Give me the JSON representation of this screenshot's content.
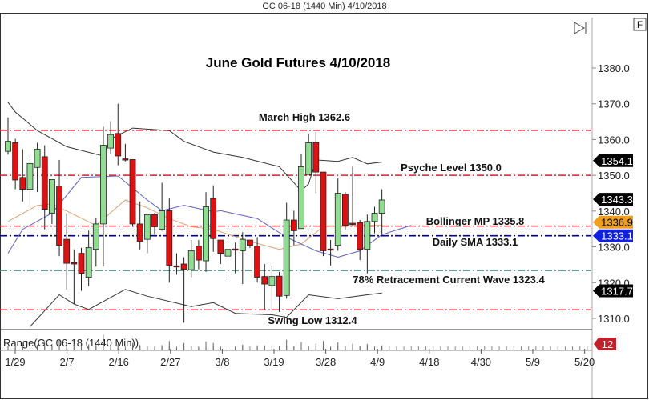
{
  "window_title": "GC 06-18 (1440 Min)  4/10/2018",
  "buttons": {
    "scroll_end_icon": "play-end-icon",
    "f_label": "F"
  },
  "chart_data": {
    "type": "candlestick",
    "title": "June Gold Futures 4/10/2018",
    "ylim": [
      1305,
      1385
    ],
    "y_ticks": [
      "1380.0",
      "1370.0",
      "1360.0",
      "1350.0",
      "1340.0",
      "1330.0",
      "1320.0",
      "1310.0"
    ],
    "x_ticks": [
      "1/29",
      "2/7",
      "2/16",
      "2/27",
      "3/8",
      "3/19",
      "3/28",
      "4/9",
      "4/18",
      "4/30",
      "5/9",
      "5/20"
    ],
    "grid": false,
    "colors": {
      "up": "#90dc90",
      "down": "#dd1111",
      "level": "#d42030",
      "sma": "#000080",
      "retracement": "#4f8f7a"
    },
    "ohlc": [
      [
        1356.7,
        1366.2,
        1355.8,
        1359.5
      ],
      [
        1359.1,
        1360.2,
        1346.1,
        1348.7
      ],
      [
        1349.4,
        1357.3,
        1342.7,
        1346.1
      ],
      [
        1346.1,
        1355.8,
        1340.9,
        1353.3
      ],
      [
        1352.2,
        1359.1,
        1345.3,
        1357.3
      ],
      [
        1355.2,
        1358.4,
        1334.9,
        1340.5
      ],
      [
        1339.4,
        1348.8,
        1336.4,
        1348.8
      ],
      [
        1347.0,
        1354.3,
        1327.4,
        1330.4
      ],
      [
        1332.1,
        1339.4,
        1318.1,
        1325.4
      ],
      [
        1325.6,
        1329.3,
        1314.0,
        1325.2
      ],
      [
        1328.2,
        1329.7,
        1317.7,
        1322.6
      ],
      [
        1321.5,
        1334.5,
        1319.0,
        1329.8
      ],
      [
        1329.3,
        1338.2,
        1324.5,
        1336.4
      ],
      [
        1336.4,
        1363.6,
        1324.5,
        1358.4
      ],
      [
        1357.6,
        1365.1,
        1356.1,
        1361.4
      ],
      [
        1361.7,
        1370.0,
        1352.8,
        1355.4
      ],
      [
        1354.6,
        1358.8,
        1353.9,
        1354.5
      ],
      [
        1354.4,
        1354.4,
        1335.6,
        1336.4
      ],
      [
        1336.4,
        1342.7,
        1329.3,
        1331.5
      ],
      [
        1332.1,
        1339.0,
        1328.2,
        1339.0
      ],
      [
        1339.0,
        1339.5,
        1333.4,
        1335.6
      ],
      [
        1334.9,
        1347.9,
        1334.5,
        1340.1
      ],
      [
        1340.1,
        1343.5,
        1320.0,
        1324.8
      ],
      [
        1324.7,
        1328.2,
        1322.2,
        1324.5
      ],
      [
        1325.2,
        1327.1,
        1308.8,
        1323.7
      ],
      [
        1323.6,
        1331.9,
        1321.5,
        1328.9
      ],
      [
        1330.2,
        1331.9,
        1323.7,
        1326.3
      ],
      [
        1326.1,
        1345.3,
        1323.0,
        1341.2
      ],
      [
        1343.5,
        1347.2,
        1328.6,
        1332.3
      ],
      [
        1331.9,
        1331.9,
        1325.2,
        1328.2
      ],
      [
        1327.4,
        1331.2,
        1320.7,
        1329.3
      ],
      [
        1329.4,
        1331.2,
        1322.6,
        1329.2
      ],
      [
        1328.9,
        1334.1,
        1319.6,
        1332.1
      ],
      [
        1331.9,
        1331.9,
        1329.7,
        1330.4
      ],
      [
        1330.2,
        1332.7,
        1320.0,
        1321.5
      ],
      [
        1321.7,
        1325.2,
        1312.5,
        1319.6
      ],
      [
        1319.2,
        1324.8,
        1312.5,
        1321.7
      ],
      [
        1321.8,
        1323.0,
        1311.8,
        1316.2
      ],
      [
        1316.4,
        1342.3,
        1315.5,
        1337.5
      ],
      [
        1337.5,
        1340.1,
        1330.4,
        1334.5
      ],
      [
        1335.1,
        1356.1,
        1335.1,
        1352.4
      ],
      [
        1350.2,
        1361.7,
        1350.2,
        1359.1
      ],
      [
        1359.1,
        1362.1,
        1345.0,
        1350.9
      ],
      [
        1350.9,
        1350.9,
        1327.4,
        1328.9
      ],
      [
        1329.4,
        1331.9,
        1324.8,
        1329.2
      ],
      [
        1330.4,
        1349.1,
        1328.9,
        1345.0
      ],
      [
        1344.7,
        1345.3,
        1334.9,
        1336.0
      ],
      [
        1336.6,
        1352.4,
        1335.6,
        1336.4
      ],
      [
        1336.8,
        1337.5,
        1326.3,
        1329.3
      ],
      [
        1329.3,
        1339.0,
        1322.6,
        1337.1
      ],
      [
        1337.1,
        1341.2,
        1333.8,
        1339.4
      ],
      [
        1339.4,
        1346.1,
        1333.4,
        1343.1
      ]
    ],
    "indicator_lines": [
      {
        "kind": "bollinger-upper",
        "color": "#333333",
        "points": [
          [
            0,
            1370.4
          ],
          [
            1,
            1367.7
          ],
          [
            4,
            1362.5
          ],
          [
            8,
            1358.0
          ],
          [
            13,
            1355.4
          ],
          [
            14,
            1360.2
          ],
          [
            17,
            1363.2
          ],
          [
            22,
            1362.5
          ],
          [
            24,
            1359.5
          ],
          [
            28,
            1356.5
          ],
          [
            32,
            1355.0
          ],
          [
            37,
            1352.4
          ],
          [
            40,
            1345.7
          ],
          [
            41,
            1347.6
          ],
          [
            42,
            1354.3
          ],
          [
            45,
            1353.9
          ],
          [
            47,
            1355.0
          ],
          [
            49,
            1353.2
          ],
          [
            51,
            1353.7
          ]
        ]
      },
      {
        "kind": "bollinger-lower",
        "color": "#333333",
        "points": [
          [
            3,
            1307.7
          ],
          [
            7,
            1316.6
          ],
          [
            9,
            1314.0
          ],
          [
            11,
            1312.5
          ],
          [
            16,
            1318.1
          ],
          [
            19,
            1316.2
          ],
          [
            25,
            1313.3
          ],
          [
            28,
            1314.4
          ],
          [
            31,
            1311.4
          ],
          [
            36,
            1311.0
          ],
          [
            38,
            1310.3
          ],
          [
            41,
            1316.6
          ],
          [
            45,
            1315.5
          ],
          [
            49,
            1316.6
          ],
          [
            51,
            1317.1
          ]
        ]
      },
      {
        "kind": "bollinger-mid",
        "color": "#e0a070",
        "points": [
          [
            0,
            1337.1
          ],
          [
            4,
            1341.6
          ],
          [
            6,
            1342.0
          ],
          [
            12,
            1336.0
          ],
          [
            16,
            1343.1
          ],
          [
            19,
            1340.9
          ],
          [
            22,
            1337.9
          ],
          [
            25,
            1335.6
          ],
          [
            28,
            1334.9
          ],
          [
            33,
            1331.5
          ],
          [
            37,
            1329.3
          ],
          [
            40,
            1330.8
          ],
          [
            43,
            1335.6
          ],
          [
            47,
            1336.0
          ],
          [
            51,
            1336.0
          ]
        ]
      },
      {
        "kind": "moving-average",
        "color": "#6060c0",
        "points": [
          [
            0,
            1328.2
          ],
          [
            2,
            1334.9
          ],
          [
            6,
            1339.4
          ],
          [
            10,
            1349.4
          ],
          [
            15,
            1349.8
          ],
          [
            19,
            1343.1
          ],
          [
            21,
            1340.1
          ],
          [
            24,
            1341.6
          ],
          [
            28,
            1339.8
          ],
          [
            29,
            1340.1
          ],
          [
            34,
            1337.9
          ],
          [
            38,
            1332.7
          ],
          [
            42,
            1328.9
          ],
          [
            45,
            1327.1
          ],
          [
            48,
            1328.9
          ],
          [
            51,
            1333.4
          ],
          [
            55,
            1336.0
          ]
        ]
      }
    ],
    "levels": [
      {
        "label": "March High 1362.6",
        "value": 1362.6,
        "color": "#d42030"
      },
      {
        "label": "Psyche Level 1350.0",
        "value": 1350.0,
        "color": "#d42030"
      },
      {
        "label": "Bollinger MP 1335.8",
        "value": 1335.8,
        "color": "#d42030"
      },
      {
        "label": "Daily SMA 1333.1",
        "value": 1333.1,
        "color": "#000080"
      },
      {
        "label": "78% Retracement Current Wave 1323.4",
        "value": 1323.4,
        "color": "#4f8f7a"
      },
      {
        "label": "Swing Low 1312.4",
        "value": 1312.4,
        "color": "#d42030"
      }
    ],
    "price_tags": [
      {
        "text": "1354.1",
        "value": 1354.1,
        "bg": "#000000",
        "fg": "#ffffff"
      },
      {
        "text": "1343.3",
        "value": 1343.3,
        "bg": "#000000",
        "fg": "#ffffff"
      },
      {
        "text": "1336.9",
        "value": 1336.9,
        "bg": "#f0a020",
        "fg": "#000000"
      },
      {
        "text": "1333.1",
        "value": 1333.1,
        "bg": "#1020e0",
        "fg": "#ffffff"
      },
      {
        "text": "1317.7",
        "value": 1317.7,
        "bg": "#000000",
        "fg": "#ffffff"
      }
    ]
  },
  "lower_panel": {
    "title": "Range(GC 06-18 (1440 Min))",
    "tag": "12",
    "tag_color": "#c0202a"
  }
}
